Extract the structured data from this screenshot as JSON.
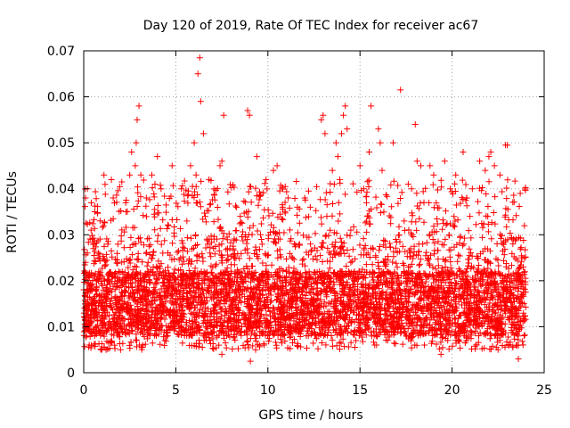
{
  "chart_data": {
    "type": "scatter",
    "title": "Day 120 of 2019, Rate Of TEC Index for receiver ac67",
    "xlabel": "GPS time / hours",
    "ylabel": "ROTI / TECUs",
    "xlim": [
      0,
      25
    ],
    "ylim": [
      0,
      0.07
    ],
    "x_ticks": [
      0,
      5,
      10,
      15,
      20,
      25
    ],
    "x_tick_labels": [
      "0",
      "5",
      "10",
      "15",
      "20",
      "25"
    ],
    "y_ticks": [
      0,
      0.01,
      0.02,
      0.03,
      0.04,
      0.05,
      0.06,
      0.07
    ],
    "y_tick_labels": [
      "0",
      "0.01",
      "0.02",
      "0.03",
      "0.04",
      "0.05",
      "0.06",
      "0.07"
    ],
    "grid": true,
    "marker": "+",
    "marker_color": "#ff0000",
    "grid_color": "#a0a0a0",
    "series": [
      {
        "name": "ROTI",
        "points": [
          [
            0.05,
            0.012
          ],
          [
            0.1,
            0.024
          ],
          [
            0.1,
            0.038
          ],
          [
            0.15,
            0.008
          ],
          [
            0.2,
            0.04
          ],
          [
            0.3,
            0.006
          ],
          [
            0.4,
            0.031
          ],
          [
            0.6,
            0.035
          ],
          [
            0.8,
            0.026
          ],
          [
            0.95,
            0.005
          ],
          [
            1.1,
            0.043
          ],
          [
            1.3,
            0.016
          ],
          [
            1.6,
            0.038
          ],
          [
            1.9,
            0.022
          ],
          [
            2.0,
            0.005
          ],
          [
            2.3,
            0.035
          ],
          [
            2.5,
            0.043
          ],
          [
            2.6,
            0.048
          ],
          [
            2.8,
            0.045
          ],
          [
            2.85,
            0.05
          ],
          [
            2.9,
            0.055
          ],
          [
            3.0,
            0.058
          ],
          [
            3.1,
            0.043
          ],
          [
            3.2,
            0.006
          ],
          [
            3.4,
            0.038
          ],
          [
            3.5,
            0.022
          ],
          [
            3.7,
            0.043
          ],
          [
            4.0,
            0.047
          ],
          [
            4.2,
            0.04
          ],
          [
            4.4,
            0.007
          ],
          [
            4.6,
            0.032
          ],
          [
            4.8,
            0.045
          ],
          [
            5.3,
            0.04
          ],
          [
            5.6,
            0.033
          ],
          [
            5.8,
            0.045
          ],
          [
            6.0,
            0.05
          ],
          [
            6.1,
            0.043
          ],
          [
            6.2,
            0.065
          ],
          [
            6.3,
            0.0685
          ],
          [
            6.35,
            0.059
          ],
          [
            6.5,
            0.052
          ],
          [
            6.8,
            0.042
          ],
          [
            7.1,
            0.011
          ],
          [
            7.4,
            0.045
          ],
          [
            7.5,
            0.046
          ],
          [
            7.5,
            0.004
          ],
          [
            7.6,
            0.056
          ],
          [
            8.3,
            0.036
          ],
          [
            8.5,
            0.034
          ],
          [
            8.9,
            0.057
          ],
          [
            9.0,
            0.056
          ],
          [
            9.05,
            0.0025
          ],
          [
            9.2,
            0.032
          ],
          [
            9.4,
            0.047
          ],
          [
            9.6,
            0.03
          ],
          [
            9.8,
            0.006
          ],
          [
            9.9,
            0.042
          ],
          [
            10.3,
            0.044
          ],
          [
            10.5,
            0.045
          ],
          [
            10.8,
            0.036
          ],
          [
            11.1,
            0.038
          ],
          [
            11.6,
            0.036
          ],
          [
            12.0,
            0.038
          ],
          [
            12.3,
            0.036
          ],
          [
            12.8,
            0.022
          ],
          [
            12.9,
            0.055
          ],
          [
            13.0,
            0.056
          ],
          [
            13.1,
            0.052
          ],
          [
            13.2,
            0.034
          ],
          [
            13.5,
            0.044
          ],
          [
            13.7,
            0.05
          ],
          [
            13.8,
            0.047
          ],
          [
            13.9,
            0.042
          ],
          [
            14.0,
            0.052
          ],
          [
            14.1,
            0.056
          ],
          [
            14.2,
            0.058
          ],
          [
            14.3,
            0.053
          ],
          [
            14.5,
            0.031
          ],
          [
            14.7,
            0.022
          ],
          [
            15.0,
            0.045
          ],
          [
            15.2,
            0.04
          ],
          [
            15.5,
            0.048
          ],
          [
            15.6,
            0.058
          ],
          [
            15.8,
            0.006
          ],
          [
            16.0,
            0.053
          ],
          [
            16.1,
            0.05
          ],
          [
            16.2,
            0.044
          ],
          [
            16.8,
            0.05
          ],
          [
            17.2,
            0.0615
          ],
          [
            17.4,
            0.033
          ],
          [
            17.8,
            0.04
          ],
          [
            18.0,
            0.054
          ],
          [
            18.1,
            0.046
          ],
          [
            18.3,
            0.045
          ],
          [
            18.5,
            0.006
          ],
          [
            18.8,
            0.045
          ],
          [
            19.0,
            0.043
          ],
          [
            19.4,
            0.004
          ],
          [
            19.6,
            0.046
          ],
          [
            19.9,
            0.04
          ],
          [
            20.2,
            0.043
          ],
          [
            20.6,
            0.048
          ],
          [
            20.8,
            0.038
          ],
          [
            21.1,
            0.04
          ],
          [
            21.5,
            0.046
          ],
          [
            21.8,
            0.044
          ],
          [
            22.0,
            0.047
          ],
          [
            22.1,
            0.048
          ],
          [
            22.3,
            0.045
          ],
          [
            22.6,
            0.043
          ],
          [
            22.9,
            0.0495
          ],
          [
            23.0,
            0.0495
          ],
          [
            23.3,
            0.028
          ],
          [
            23.6,
            0.003
          ],
          [
            23.7,
            0.039
          ],
          [
            23.9,
            0.025
          ]
        ],
        "dense_band": {
          "x_range": [
            0,
            24
          ],
          "y_typical_range": [
            0.005,
            0.03
          ],
          "y_core_range": [
            0.008,
            0.022
          ]
        }
      }
    ]
  }
}
